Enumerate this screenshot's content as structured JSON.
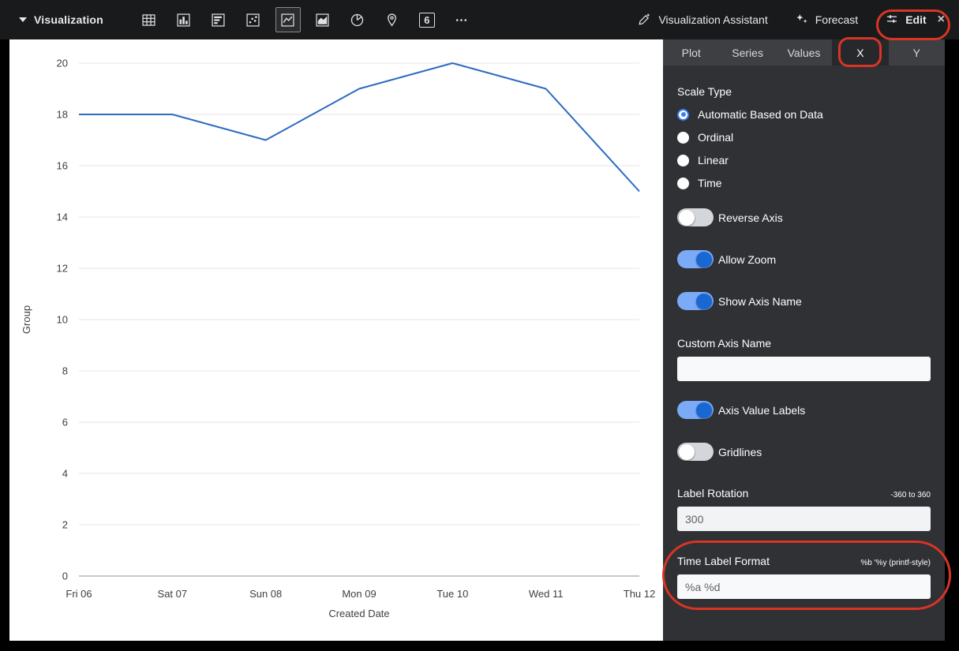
{
  "toolbar": {
    "visualization_label": "Visualization",
    "single_value_glyph": "6",
    "assistant_label": "Visualization Assistant",
    "forecast_label": "Forecast",
    "edit_label": "Edit",
    "edit_close_glyph": "×",
    "selected_chart_type": "line-chart"
  },
  "panel": {
    "tabs": [
      {
        "label": "Plot",
        "selected": false
      },
      {
        "label": "Series",
        "selected": false
      },
      {
        "label": "Values",
        "selected": false
      },
      {
        "label": "X",
        "selected": true
      },
      {
        "label": "Y",
        "selected": false
      }
    ],
    "scale_type": {
      "label": "Scale Type",
      "options": [
        {
          "label": "Automatic Based on Data",
          "selected": true
        },
        {
          "label": "Ordinal",
          "selected": false
        },
        {
          "label": "Linear",
          "selected": false
        },
        {
          "label": "Time",
          "selected": false
        }
      ]
    },
    "toggles": [
      {
        "label": "Reverse Axis",
        "on": false
      },
      {
        "label": "Allow Zoom",
        "on": true
      },
      {
        "label": "Show Axis Name",
        "on": true
      },
      {
        "label": "Axis Value Labels",
        "on": true
      },
      {
        "label": "Gridlines",
        "on": false
      }
    ],
    "custom_axis_name": {
      "label": "Custom Axis Name",
      "value": ""
    },
    "label_rotation": {
      "label": "Label Rotation",
      "hint": "-360 to 360",
      "value": "300"
    },
    "time_label_format": {
      "label": "Time Label Format",
      "hint": "%b '%y (printf-style)",
      "value": "%a %d"
    }
  },
  "chart_data": {
    "type": "line",
    "categories": [
      "Fri 06",
      "Sat 07",
      "Sun 08",
      "Mon 09",
      "Tue 10",
      "Wed 11",
      "Thu 12"
    ],
    "values": [
      18,
      18,
      17,
      19,
      20,
      19,
      15
    ],
    "title": "",
    "xlabel": "Created Date",
    "ylabel": "Group",
    "ylim": [
      0,
      20
    ],
    "ytick_step": 2,
    "grid": true,
    "legend": false,
    "line_color": "#2d6bbf"
  },
  "colors": {
    "accent_blue": "#1967d2",
    "annotation_red": "#d93425",
    "toolbar_bg": "#191a1b",
    "panel_bg": "#2f3134"
  }
}
